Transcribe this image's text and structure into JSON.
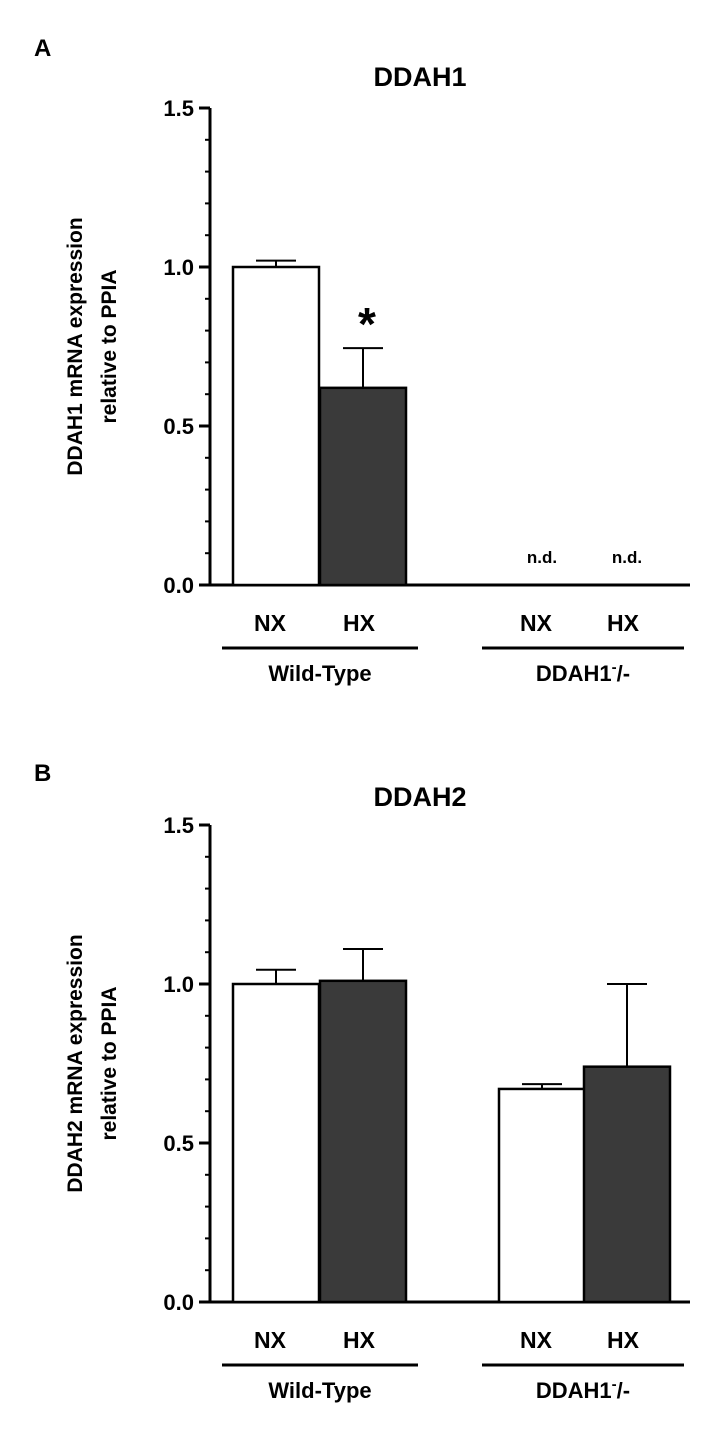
{
  "chart_data": [
    {
      "panel_label": "A",
      "type": "bar",
      "title": "DDAH1",
      "ylabel_lines": [
        "DDAH1 mRNA expression",
        "relative to PPIA"
      ],
      "ylim": [
        0,
        1.5
      ],
      "yticks": [
        "0.0",
        "0.5",
        "1.0",
        "1.5"
      ],
      "categories": [
        "NX",
        "HX",
        "NX",
        "HX"
      ],
      "groups": [
        {
          "label": "Wild-Type",
          "label_sup": "",
          "label_tail": ""
        },
        {
          "label": "DDAH1",
          "label_sup": "-",
          "label_tail": "/-"
        }
      ],
      "values": [
        1.0,
        0.62,
        0.0,
        0.0
      ],
      "errors": [
        0.02,
        0.125,
        0,
        0
      ],
      "fills": [
        "#ffffff",
        "#3a3a3a",
        "#ffffff",
        "#3a3a3a"
      ],
      "annotations": [
        "",
        "*",
        "n.d.",
        "n.d."
      ]
    },
    {
      "panel_label": "B",
      "type": "bar",
      "title": "DDAH2",
      "ylabel_lines": [
        "DDAH2 mRNA expression",
        "relative to PPIA"
      ],
      "ylim": [
        0,
        1.5
      ],
      "yticks": [
        "0.0",
        "0.5",
        "1.0",
        "1.5"
      ],
      "categories": [
        "NX",
        "HX",
        "NX",
        "HX"
      ],
      "groups": [
        {
          "label": "Wild-Type",
          "label_sup": "",
          "label_tail": ""
        },
        {
          "label": "DDAH1",
          "label_sup": "-",
          "label_tail": "/-"
        }
      ],
      "values": [
        1.0,
        1.01,
        0.67,
        0.74
      ],
      "errors": [
        0.045,
        0.1,
        0.015,
        0.26
      ],
      "fills": [
        "#ffffff",
        "#3a3a3a",
        "#ffffff",
        "#3a3a3a"
      ],
      "annotations": [
        "",
        "",
        "",
        ""
      ]
    }
  ]
}
